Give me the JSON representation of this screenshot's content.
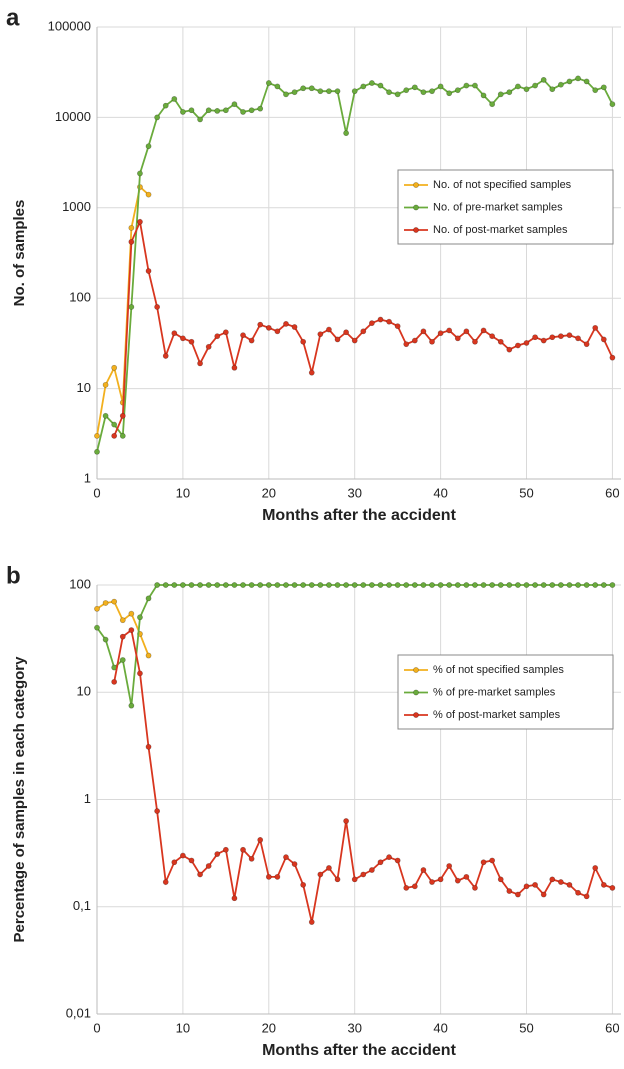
{
  "chart_data": [
    {
      "type": "line",
      "label": "a",
      "x_label": "Months after the accident",
      "y_label": "No. of samples",
      "log_y": true,
      "grid": true,
      "legend": "right",
      "x": [
        0,
        1,
        2,
        3,
        4,
        5,
        6,
        7,
        8,
        9,
        10,
        11,
        12,
        13,
        14,
        15,
        16,
        17,
        18,
        19,
        20,
        21,
        22,
        23,
        24,
        25,
        26,
        27,
        28,
        29,
        30,
        31,
        32,
        33,
        34,
        35,
        36,
        37,
        38,
        39,
        40,
        41,
        42,
        43,
        44,
        45,
        46,
        47,
        48,
        49,
        50,
        51,
        52,
        53,
        54,
        55,
        56,
        57,
        58,
        59,
        60
      ],
      "xlim": [
        0,
        61
      ],
      "xticks": [
        0,
        10,
        20,
        30,
        40,
        50,
        60
      ],
      "ylim": [
        1,
        100000
      ],
      "yticks": [
        1,
        10,
        100,
        1000,
        10000,
        100000
      ],
      "series": [
        {
          "name": "No. of not specified samples",
          "color": "#f2b01e",
          "values": [
            3,
            11,
            17,
            7,
            600,
            1700,
            1400,
            null,
            null,
            null,
            null,
            null,
            null,
            null,
            null,
            null,
            null,
            null,
            null,
            null,
            null,
            null,
            null,
            null,
            null,
            null,
            null,
            null,
            null,
            null,
            null,
            null,
            null,
            null,
            null,
            null,
            null,
            null,
            null,
            null,
            null,
            null,
            null,
            null,
            null,
            null,
            null,
            null,
            null,
            null,
            null,
            null,
            null,
            null,
            null,
            null,
            null,
            null,
            null,
            null,
            null
          ]
        },
        {
          "name": "No. of pre-market samples",
          "color": "#6aab3c",
          "values": [
            2,
            5,
            4,
            3,
            80,
            2400,
            4800,
            10000,
            13500,
            16000,
            11500,
            12000,
            9500,
            12000,
            11800,
            12000,
            14000,
            11500,
            12000,
            12500,
            24000,
            22000,
            18000,
            19000,
            21000,
            21000,
            19500,
            19500,
            19500,
            6700,
            19500,
            22000,
            24000,
            22500,
            19000,
            18000,
            20000,
            21500,
            19000,
            19500,
            22000,
            18500,
            20000,
            22500,
            22500,
            17500,
            14000,
            18000,
            19000,
            22000,
            20500,
            22500,
            26000,
            20500,
            23000,
            25000,
            27000,
            25000,
            20000,
            21500,
            14000
          ]
        },
        {
          "name": "No. of post-market samples",
          "color": "#d8361f",
          "values": [
            null,
            null,
            3,
            5,
            420,
            700,
            200,
            80,
            23,
            41,
            36,
            33,
            19,
            29,
            38,
            42,
            17,
            39,
            34,
            51,
            47,
            43,
            52,
            48,
            33,
            15,
            40,
            45,
            35,
            42,
            34,
            43,
            53,
            58,
            55,
            49,
            31,
            34,
            43,
            33,
            41,
            44,
            36,
            43,
            33,
            44,
            38,
            33,
            27,
            30,
            32,
            37,
            34,
            37,
            38,
            39,
            36,
            31,
            47,
            35,
            22
          ]
        }
      ]
    },
    {
      "type": "line",
      "label": "b",
      "x_label": "Months after the accident",
      "y_label": "Percentage of samples in each category",
      "log_y": true,
      "grid": true,
      "legend": "right",
      "x": [
        0,
        1,
        2,
        3,
        4,
        5,
        6,
        7,
        8,
        9,
        10,
        11,
        12,
        13,
        14,
        15,
        16,
        17,
        18,
        19,
        20,
        21,
        22,
        23,
        24,
        25,
        26,
        27,
        28,
        29,
        30,
        31,
        32,
        33,
        34,
        35,
        36,
        37,
        38,
        39,
        40,
        41,
        42,
        43,
        44,
        45,
        46,
        47,
        48,
        49,
        50,
        51,
        52,
        53,
        54,
        55,
        56,
        57,
        58,
        59,
        60
      ],
      "xlim": [
        0,
        61
      ],
      "xticks": [
        0,
        10,
        20,
        30,
        40,
        50,
        60
      ],
      "ylim": [
        0.01,
        100
      ],
      "yticks": [
        {
          "value": 0.01,
          "label": "0,01"
        },
        {
          "value": 0.1,
          "label": "0,1"
        },
        1,
        10,
        100
      ],
      "series": [
        {
          "name": "% of not specified samples",
          "color": "#f2b01e",
          "values": [
            60,
            68,
            70,
            47,
            54,
            35,
            22,
            null,
            null,
            null,
            null,
            null,
            null,
            null,
            null,
            null,
            null,
            null,
            null,
            null,
            null,
            null,
            null,
            null,
            null,
            null,
            null,
            null,
            null,
            null,
            null,
            null,
            null,
            null,
            null,
            null,
            null,
            null,
            null,
            null,
            null,
            null,
            null,
            null,
            null,
            null,
            null,
            null,
            null,
            null,
            null,
            null,
            null,
            null,
            null,
            null,
            null,
            null,
            null,
            null,
            null
          ]
        },
        {
          "name": "% of pre-market samples",
          "color": "#6aab3c",
          "values": [
            40,
            31,
            17,
            20,
            7.5,
            50,
            75,
            100,
            100,
            100,
            100,
            100,
            100,
            100,
            100,
            100,
            100,
            100,
            100,
            100,
            100,
            100,
            100,
            100,
            100,
            100,
            100,
            100,
            100,
            100,
            100,
            100,
            100,
            100,
            100,
            100,
            100,
            100,
            100,
            100,
            100,
            100,
            100,
            100,
            100,
            100,
            100,
            100,
            100,
            100,
            100,
            100,
            100,
            100,
            100,
            100,
            100,
            100,
            100,
            100,
            100
          ]
        },
        {
          "name": "% of post-market samples",
          "color": "#d8361f",
          "values": [
            null,
            null,
            12.5,
            33,
            38,
            15,
            3.1,
            0.78,
            0.17,
            0.26,
            0.3,
            0.27,
            0.2,
            0.24,
            0.31,
            0.34,
            0.12,
            0.34,
            0.28,
            0.42,
            0.19,
            0.19,
            0.29,
            0.25,
            0.16,
            0.072,
            0.2,
            0.23,
            0.18,
            0.63,
            0.18,
            0.2,
            0.22,
            0.26,
            0.29,
            0.27,
            0.15,
            0.155,
            0.22,
            0.17,
            0.18,
            0.24,
            0.175,
            0.19,
            0.15,
            0.26,
            0.27,
            0.18,
            0.14,
            0.13,
            0.155,
            0.16,
            0.13,
            0.18,
            0.17,
            0.16,
            0.135,
            0.125,
            0.23,
            0.16,
            0.15
          ]
        }
      ]
    }
  ]
}
